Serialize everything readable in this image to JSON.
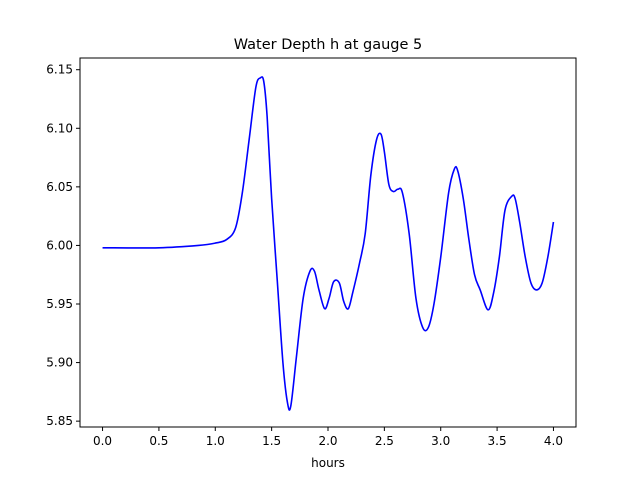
{
  "chart_data": {
    "type": "line",
    "title": "Water Depth h at gauge 5",
    "xlabel": "hours",
    "ylabel": "",
    "xlim": [
      -0.2,
      4.2
    ],
    "ylim": [
      5.845,
      6.16
    ],
    "xticks": [
      "0.0",
      "0.5",
      "1.0",
      "1.5",
      "2.0",
      "2.5",
      "3.0",
      "3.5",
      "4.0"
    ],
    "yticks": [
      "5.85",
      "5.90",
      "5.95",
      "6.00",
      "6.05",
      "6.10",
      "6.15"
    ],
    "grid": false,
    "legend": "none",
    "series": [
      {
        "color": "#0000ff",
        "x": [
          0.0,
          0.5,
          0.85,
          1.0,
          1.1,
          1.18,
          1.24,
          1.3,
          1.36,
          1.4,
          1.43,
          1.46,
          1.5,
          1.55,
          1.6,
          1.64,
          1.67,
          1.72,
          1.78,
          1.84,
          1.88,
          1.92,
          1.97,
          2.01,
          2.05,
          2.1,
          2.14,
          2.18,
          2.22,
          2.28,
          2.33,
          2.38,
          2.43,
          2.47,
          2.5,
          2.54,
          2.58,
          2.62,
          2.66,
          2.72,
          2.78,
          2.84,
          2.89,
          2.94,
          3.0,
          3.07,
          3.12,
          3.15,
          3.2,
          3.25,
          3.3,
          3.35,
          3.42,
          3.47,
          3.52,
          3.57,
          3.63,
          3.66,
          3.7,
          3.75,
          3.8,
          3.85,
          3.9,
          3.95,
          4.0
        ],
        "y": [
          5.998,
          5.998,
          6.0,
          6.002,
          6.005,
          6.015,
          6.045,
          6.09,
          6.135,
          6.143,
          6.14,
          6.11,
          6.04,
          5.97,
          5.9,
          5.866,
          5.863,
          5.905,
          5.955,
          5.978,
          5.978,
          5.962,
          5.946,
          5.955,
          5.969,
          5.968,
          5.952,
          5.946,
          5.96,
          5.985,
          6.01,
          6.06,
          6.09,
          6.095,
          6.08,
          6.052,
          6.046,
          6.048,
          6.045,
          6.01,
          5.955,
          5.93,
          5.93,
          5.95,
          5.99,
          6.045,
          6.065,
          6.064,
          6.04,
          6.005,
          5.975,
          5.962,
          5.945,
          5.96,
          5.99,
          6.03,
          6.042,
          6.04,
          6.02,
          5.99,
          5.968,
          5.962,
          5.968,
          5.99,
          6.02
        ]
      }
    ]
  }
}
